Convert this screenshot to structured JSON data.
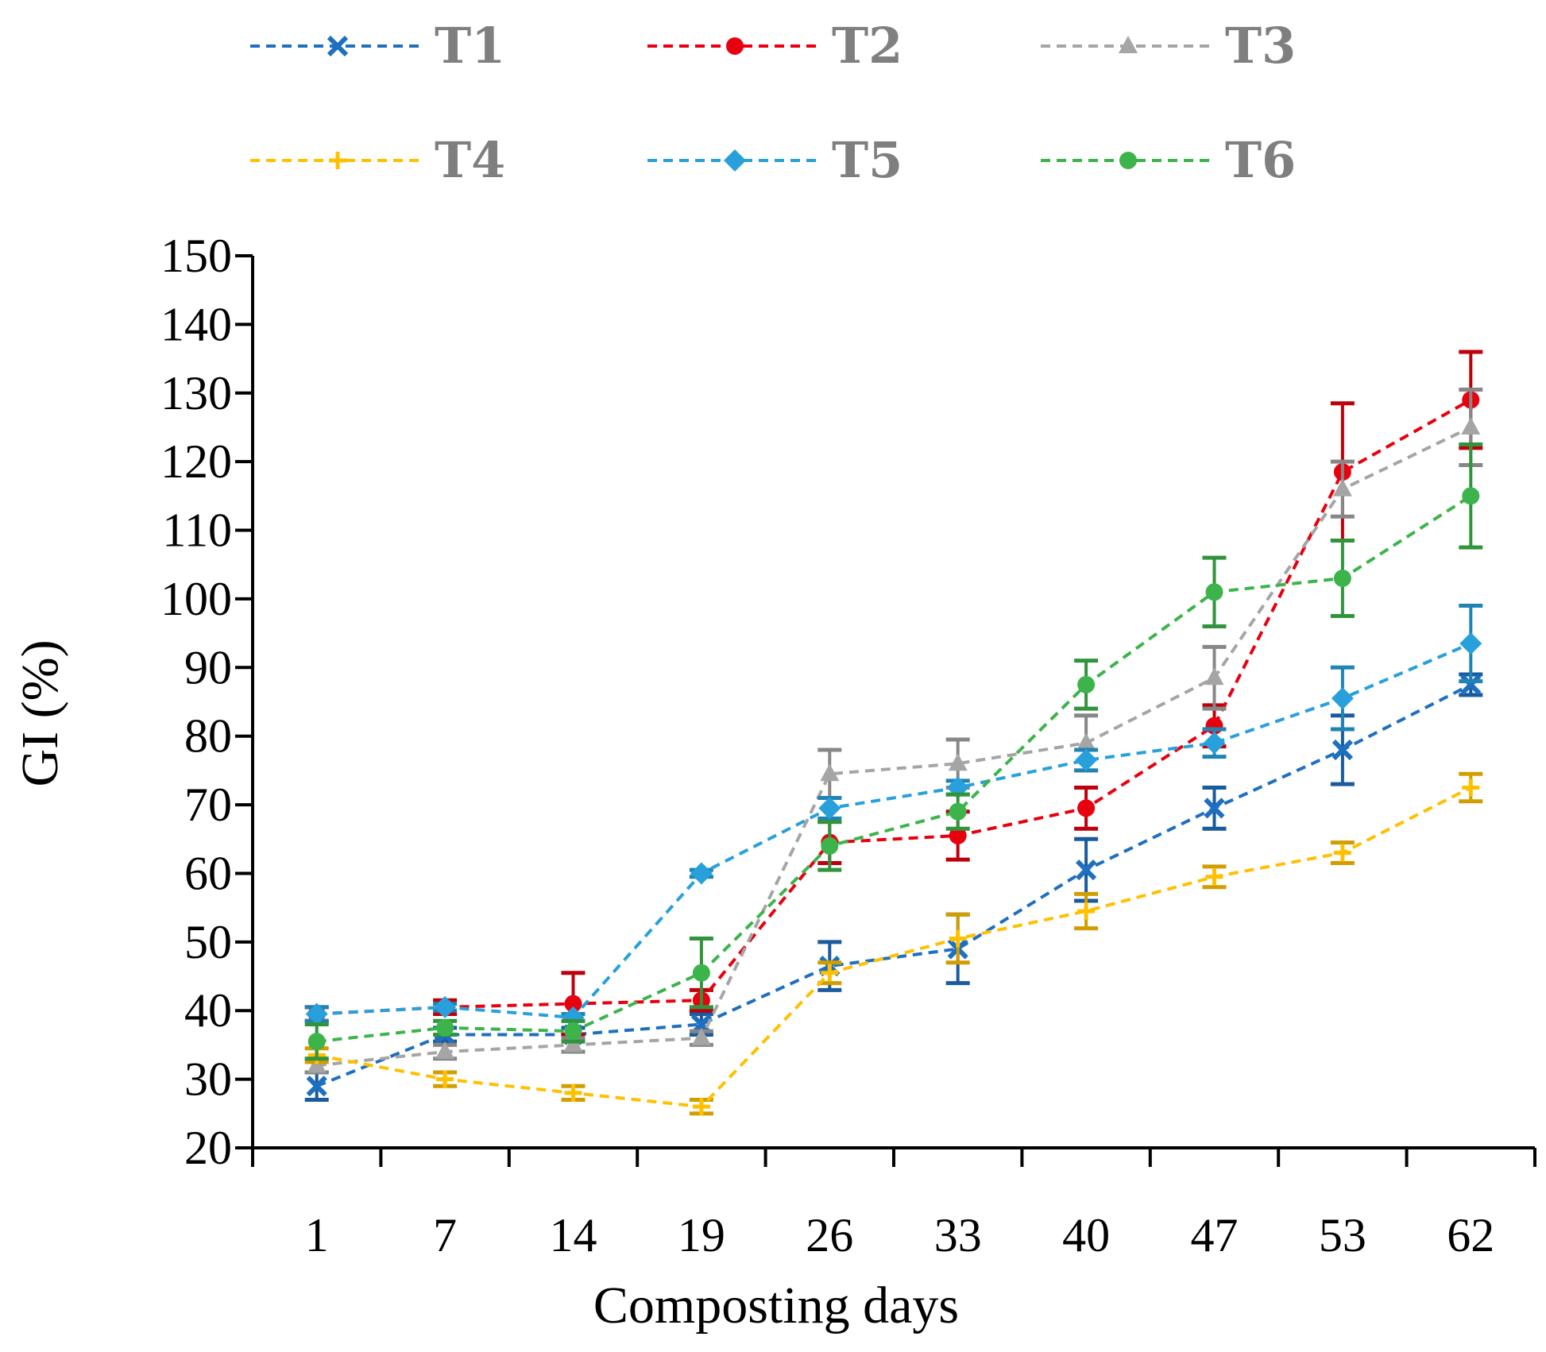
{
  "chart_data": {
    "type": "line",
    "title": "",
    "xlabel": "Composting days",
    "ylabel": "GI (%)",
    "ylim": [
      20,
      150
    ],
    "yticks": [
      20,
      30,
      40,
      50,
      60,
      70,
      80,
      90,
      100,
      110,
      120,
      130,
      140,
      150
    ],
    "categories": [
      "1",
      "7",
      "14",
      "19",
      "26",
      "33",
      "40",
      "47",
      "53",
      "62"
    ],
    "legend_position": "top",
    "series": [
      {
        "name": "T1",
        "color": "#1f6fc0",
        "marker": "x-cross",
        "values": [
          29,
          36.5,
          36.5,
          38,
          46.5,
          49,
          60.5,
          69.5,
          78,
          87.5
        ],
        "errors": [
          2,
          1,
          1,
          1.5,
          3.5,
          5,
          4.5,
          3,
          5,
          1.5
        ]
      },
      {
        "name": "T2",
        "color": "#e8000f",
        "marker": "circle",
        "values": [
          39.5,
          40.5,
          41,
          41.5,
          64.5,
          65.5,
          69.5,
          81.5,
          118.5,
          129
        ],
        "errors": [
          1,
          1,
          4.5,
          1.5,
          3,
          3.5,
          3,
          3,
          10,
          7
        ]
      },
      {
        "name": "T3",
        "color": "#a5a5a5",
        "marker": "triangle",
        "values": [
          32,
          34,
          35,
          36,
          74.5,
          76,
          79,
          88.5,
          116,
          125
        ],
        "errors": [
          1,
          1,
          1,
          1,
          3.5,
          3.5,
          4,
          4.5,
          4,
          5.5
        ]
      },
      {
        "name": "T4",
        "color": "#ffc000",
        "marker": "plus",
        "values": [
          33.5,
          30,
          28,
          26,
          45.5,
          50.5,
          54.5,
          59.5,
          63,
          72.5
        ],
        "errors": [
          1,
          1,
          1,
          1,
          1.5,
          3.5,
          2.5,
          1.5,
          1.5,
          2
        ]
      },
      {
        "name": "T5",
        "color": "#28a0dc",
        "marker": "diamond",
        "values": [
          39.5,
          40.5,
          39,
          60,
          69.5,
          72.5,
          76.5,
          79,
          85.5,
          93.5
        ],
        "errors": [
          1,
          0.5,
          0.5,
          0.5,
          1.5,
          1,
          1.5,
          2,
          4.5,
          5.5
        ]
      },
      {
        "name": "T6",
        "color": "#3cb44b",
        "marker": "circle",
        "values": [
          35.5,
          37.5,
          37,
          45.5,
          64,
          69,
          87.5,
          101,
          103,
          115
        ],
        "errors": [
          2.5,
          1,
          1.5,
          5,
          3.5,
          2.5,
          3.5,
          5,
          5.5,
          7.5
        ]
      }
    ]
  }
}
